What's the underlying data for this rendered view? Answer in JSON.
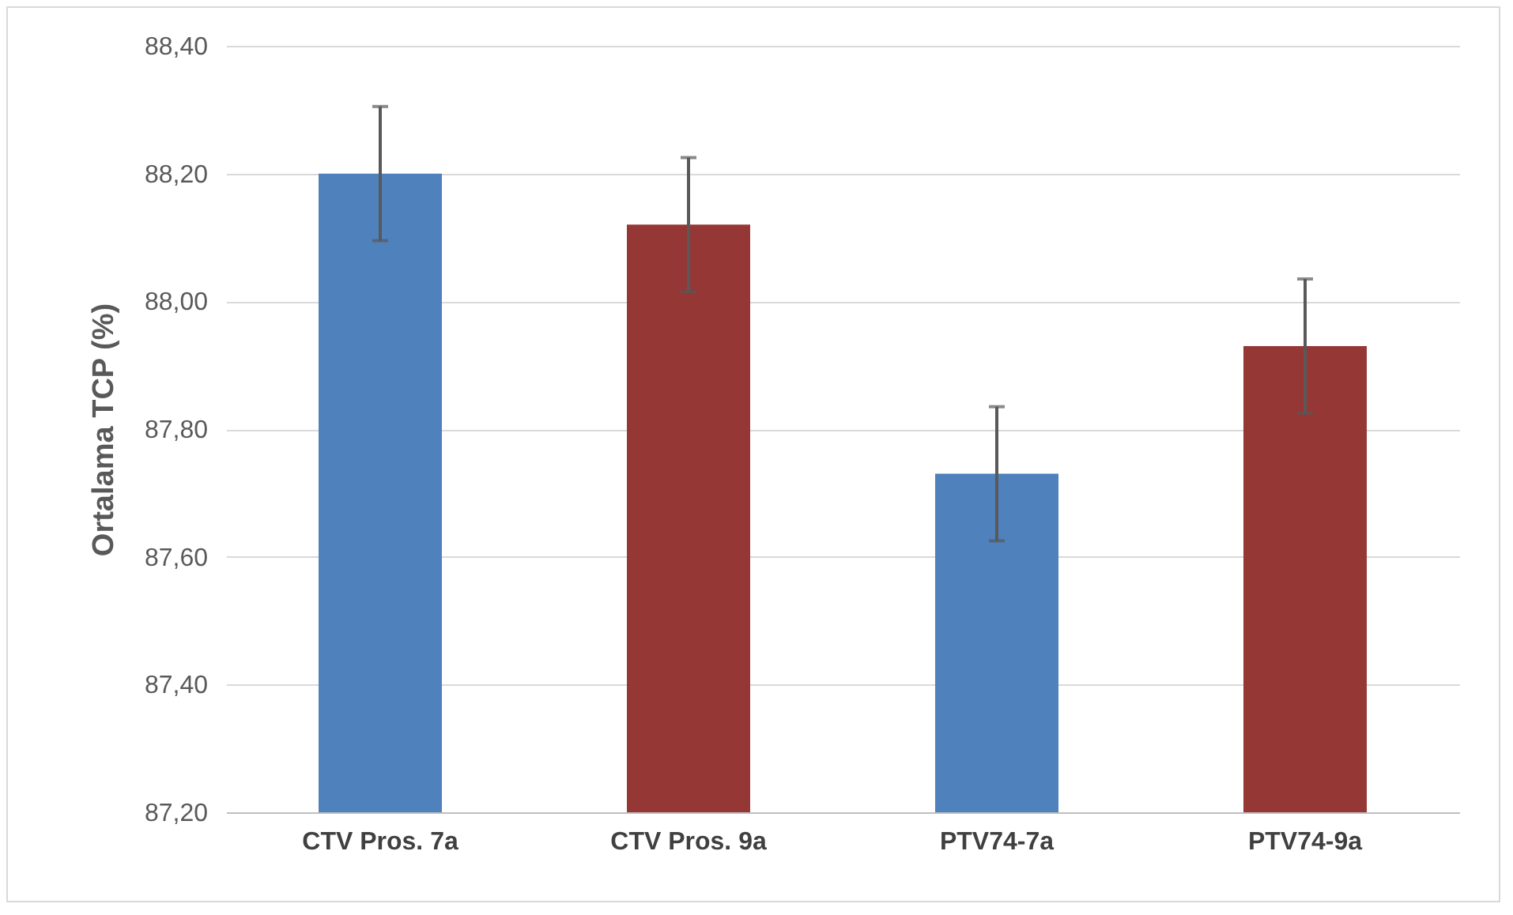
{
  "chart_data": {
    "type": "bar",
    "ylabel": "Ortalama TCP (%)",
    "categories": [
      "CTV Pros. 7a",
      "CTV Pros. 9a",
      "PTV74-7a",
      "PTV74-9a"
    ],
    "values": [
      88.2,
      88.12,
      87.73,
      87.93
    ],
    "errors": [
      0.105,
      0.105,
      0.105,
      0.105
    ],
    "colors": [
      "#4f81bd",
      "#953735",
      "#4f81bd",
      "#953735"
    ],
    "ylim": [
      87.2,
      88.4
    ],
    "yticks": [
      {
        "value": 87.2,
        "label": "87,20"
      },
      {
        "value": 87.4,
        "label": "87,40"
      },
      {
        "value": 87.6,
        "label": "87,60"
      },
      {
        "value": 87.8,
        "label": "87,80"
      },
      {
        "value": 88.0,
        "label": "88,00"
      },
      {
        "value": 88.2,
        "label": "88,20"
      },
      {
        "value": 88.4,
        "label": "88,40"
      }
    ],
    "grid": "y"
  }
}
